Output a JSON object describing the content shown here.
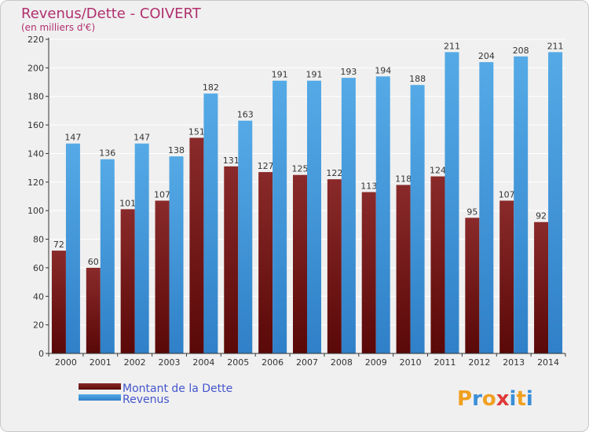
{
  "chart_data": {
    "type": "bar",
    "title": "Revenus/Dette - COIVERT",
    "subtitle": "(en milliers d'€)",
    "categories": [
      "2000",
      "2001",
      "2002",
      "2003",
      "2004",
      "2005",
      "2006",
      "2007",
      "2008",
      "2009",
      "2010",
      "2011",
      "2012",
      "2013",
      "2014"
    ],
    "series": [
      {
        "name": "Montant de la Dette",
        "color": "#7a1a1a",
        "values": [
          72,
          60,
          101,
          107,
          151,
          131,
          127,
          125,
          122,
          113,
          118,
          124,
          95,
          107,
          92
        ]
      },
      {
        "name": "Revenus",
        "color": "#4aa3e2",
        "values": [
          147,
          136,
          147,
          138,
          182,
          163,
          191,
          191,
          193,
          194,
          188,
          211,
          204,
          208,
          211
        ]
      }
    ],
    "ylim": [
      0,
      220
    ],
    "yticks": [
      0,
      20,
      40,
      60,
      80,
      100,
      120,
      140,
      160,
      180,
      200,
      220
    ],
    "grid": true,
    "legend": "bottom-left"
  },
  "logo": {
    "text": "Proxiti",
    "letters": [
      "P",
      "r",
      "o",
      "x",
      "i",
      "t",
      "i"
    ],
    "colors": [
      "#f0a020",
      "#3a8fd8",
      "#f0a020",
      "#e03a3a",
      "#3a8fd8",
      "#f0a020",
      "#3a8fd8"
    ]
  }
}
